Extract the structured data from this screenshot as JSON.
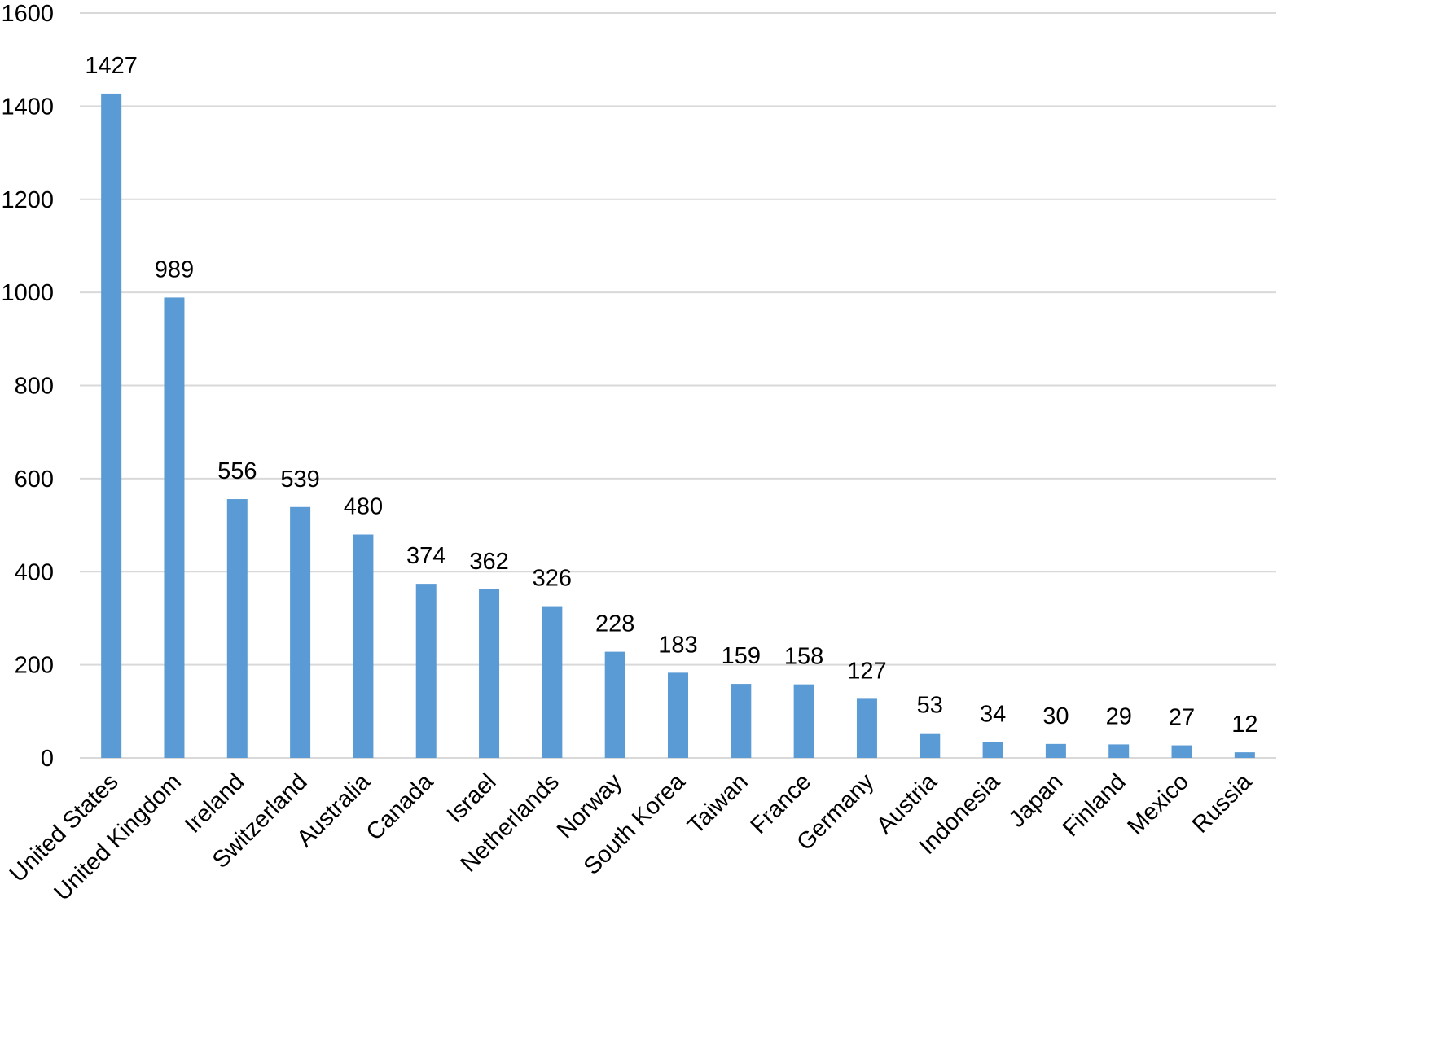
{
  "chart_data": {
    "type": "bar",
    "categories": [
      "United States",
      "United Kingdom",
      "Ireland",
      "Switzerland",
      "Australia",
      "Canada",
      "Israel",
      "Netherlands",
      "Norway",
      "South Korea",
      "Taiwan",
      "France",
      "Germany",
      "Austria",
      "Indonesia",
      "Japan",
      "Finland",
      "Mexico",
      "Russia"
    ],
    "values": [
      1427,
      989,
      556,
      539,
      480,
      374,
      362,
      326,
      228,
      183,
      159,
      158,
      127,
      53,
      34,
      30,
      29,
      27,
      12
    ],
    "data_labels": [
      "1427",
      "989",
      "556",
      "539",
      "480",
      "374",
      "362",
      "326",
      "228",
      "183",
      "159",
      "158",
      "127",
      "53",
      "34",
      "30",
      "29",
      "27",
      "12"
    ],
    "title": "",
    "xlabel": "",
    "ylabel": "",
    "ylim": [
      0,
      1600
    ],
    "y_ticks": [
      0,
      200,
      400,
      600,
      800,
      1000,
      1200,
      1400,
      1600
    ],
    "y_tick_labels": [
      "0",
      "200",
      "400",
      "600",
      "800",
      "1000",
      "1200",
      "1400",
      "1600"
    ],
    "grid": true,
    "legend": "none",
    "colors": {
      "bar": "#5b9bd5",
      "gridline": "#d9d9d9",
      "text": "#000000"
    }
  }
}
